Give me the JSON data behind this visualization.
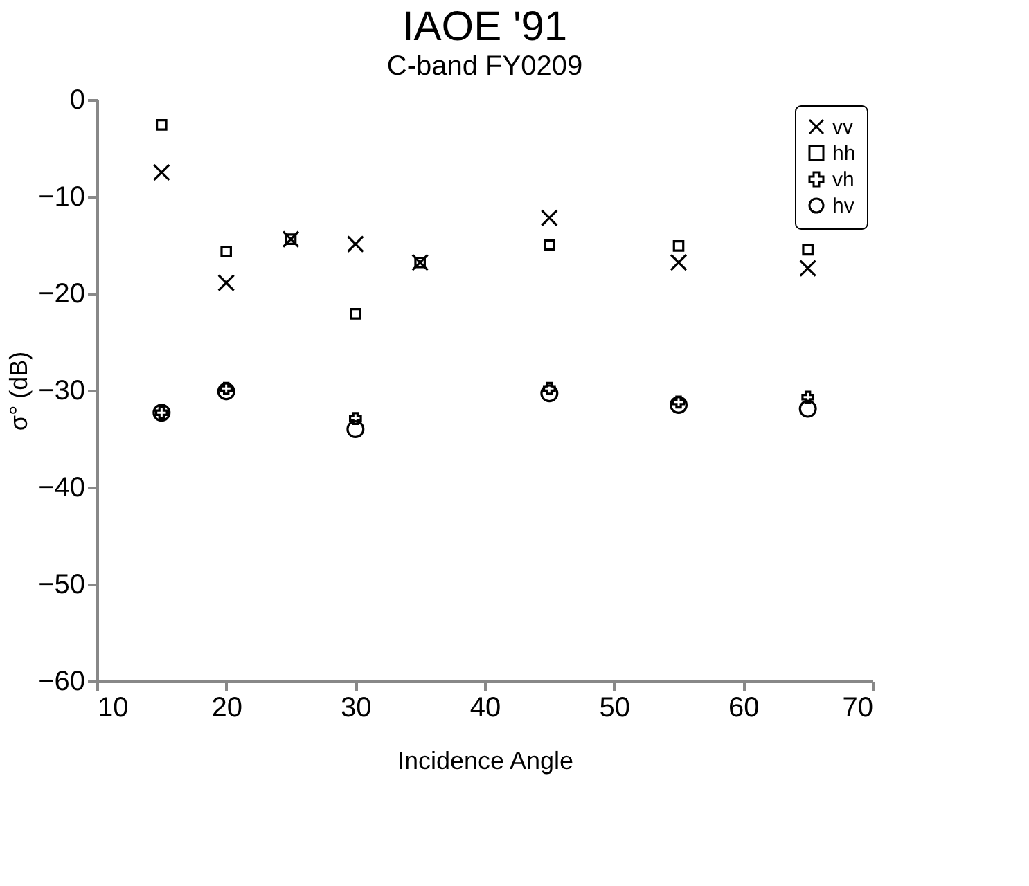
{
  "chart_data": {
    "type": "scatter",
    "title": "IAOE '91",
    "subtitle": "C-band   FY0209",
    "xlabel": "Incidence Angle",
    "ylabel": "σ° (dB)",
    "x": [
      15,
      20,
      25,
      30,
      35,
      45,
      55,
      65
    ],
    "series": [
      {
        "name": "vv",
        "color": "#000000",
        "marker": "x",
        "values": [
          -7.5,
          -18.9,
          -14.4,
          -14.9,
          -16.8,
          -12.2,
          -16.8,
          -17.4
        ]
      },
      {
        "name": "hh",
        "color": "#000000",
        "marker": "square",
        "values": [
          -2.6,
          -15.7,
          -14.4,
          -22.1,
          -16.8,
          -15.0,
          -15.1,
          -15.5
        ]
      },
      {
        "name": "vh",
        "color": "#000000",
        "marker": "cross",
        "values": [
          -32.3,
          -29.8,
          null,
          -32.9,
          null,
          -29.8,
          -31.2,
          -30.7
        ]
      },
      {
        "name": "hv",
        "color": "#000000",
        "marker": "circle",
        "values": [
          -32.3,
          -30.1,
          null,
          -34.0,
          null,
          -30.3,
          -31.5,
          -31.9
        ]
      }
    ],
    "xlim": [
      10,
      70
    ],
    "xticks": [
      10,
      20,
      30,
      40,
      50,
      60,
      70
    ],
    "ylim": [
      -60,
      0
    ],
    "yticks": [
      -60,
      -50,
      -40,
      -30,
      -20,
      -10,
      0
    ],
    "grid": false,
    "legend": "top right"
  }
}
